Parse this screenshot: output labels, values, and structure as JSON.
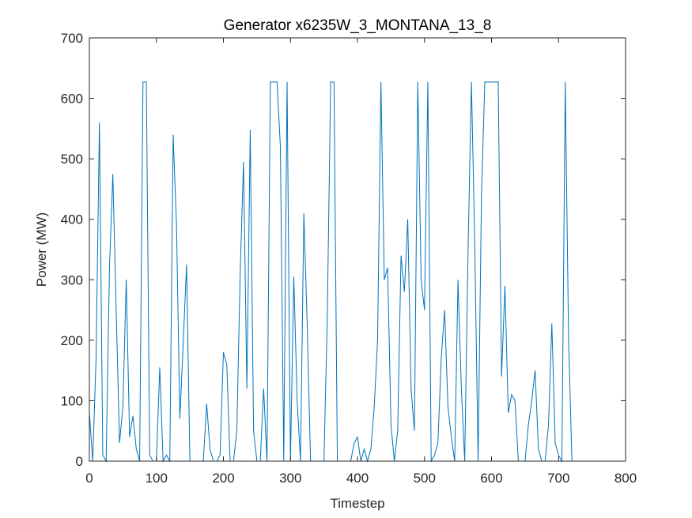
{
  "chart_data": {
    "type": "line",
    "title": "Generator x6235W_3_MONTANA_13_8",
    "x_label": "Timestep",
    "y_label": "Power (MW)",
    "color": "#0072bd",
    "xlim": [
      0,
      800
    ],
    "ylim": [
      0,
      700
    ],
    "xticks": [
      0,
      100,
      200,
      300,
      400,
      500,
      600,
      700,
      800
    ],
    "yticks": [
      0,
      100,
      200,
      300,
      400,
      500,
      600,
      700
    ],
    "x": [
      0,
      5,
      10,
      15,
      20,
      25,
      30,
      35,
      40,
      45,
      50,
      55,
      60,
      65,
      70,
      75,
      80,
      85,
      90,
      95,
      100,
      105,
      110,
      115,
      120,
      125,
      130,
      135,
      140,
      145,
      150,
      155,
      160,
      165,
      170,
      175,
      180,
      185,
      190,
      195,
      200,
      205,
      210,
      215,
      220,
      225,
      230,
      235,
      240,
      245,
      250,
      255,
      260,
      265,
      270,
      275,
      280,
      285,
      290,
      295,
      300,
      305,
      310,
      315,
      320,
      325,
      330,
      335,
      340,
      345,
      350,
      355,
      360,
      365,
      370,
      375,
      380,
      385,
      390,
      395,
      400,
      405,
      410,
      415,
      420,
      425,
      430,
      435,
      440,
      445,
      450,
      455,
      460,
      465,
      470,
      475,
      480,
      485,
      490,
      495,
      500,
      505,
      510,
      515,
      520,
      525,
      530,
      535,
      540,
      545,
      550,
      555,
      560,
      565,
      570,
      575,
      580,
      585,
      590,
      595,
      600,
      605,
      610,
      615,
      620,
      625,
      630,
      635,
      640,
      645,
      650,
      655,
      660,
      665,
      670,
      675,
      680,
      685,
      690,
      695,
      700,
      705,
      710,
      715,
      720
    ],
    "values": [
      80,
      0,
      170,
      560,
      10,
      0,
      320,
      475,
      250,
      30,
      90,
      300,
      40,
      75,
      20,
      0,
      627,
      627,
      10,
      0,
      0,
      155,
      0,
      10,
      0,
      540,
      390,
      70,
      195,
      325,
      0,
      0,
      0,
      0,
      0,
      95,
      20,
      0,
      0,
      10,
      180,
      160,
      0,
      0,
      50,
      310,
      495,
      120,
      548,
      50,
      0,
      0,
      120,
      0,
      627,
      627,
      627,
      520,
      0,
      627,
      0,
      305,
      100,
      0,
      410,
      225,
      0,
      0,
      0,
      0,
      0,
      240,
      627,
      627,
      0,
      0,
      0,
      0,
      0,
      30,
      40,
      0,
      20,
      0,
      20,
      90,
      200,
      627,
      300,
      320,
      60,
      0,
      50,
      340,
      280,
      400,
      120,
      50,
      627,
      300,
      250,
      627,
      0,
      10,
      30,
      170,
      250,
      90,
      40,
      0,
      300,
      120,
      0,
      350,
      627,
      360,
      0,
      440,
      627,
      627,
      627,
      627,
      627,
      140,
      290,
      80,
      110,
      100,
      0,
      0,
      0,
      60,
      100,
      150,
      20,
      0,
      0,
      60,
      228,
      30,
      10,
      0,
      627,
      200,
      0
    ]
  }
}
